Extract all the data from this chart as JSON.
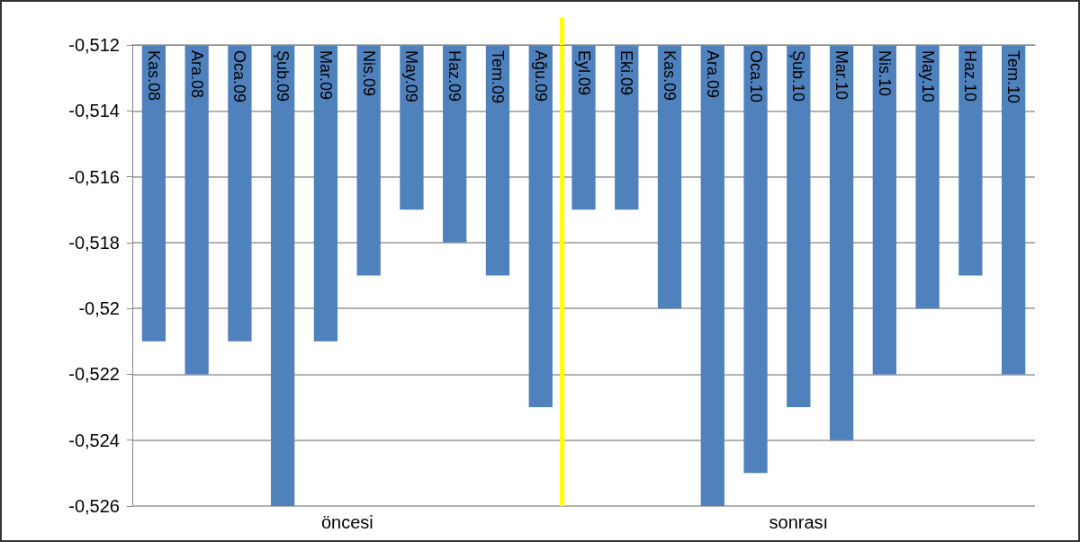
{
  "chart_data": {
    "type": "bar",
    "categories": [
      "Kas.08",
      "Ara.08",
      "Oca.09",
      "Şub.09",
      "Mar.09",
      "Nis.09",
      "May.09",
      "Haz.09",
      "Tem.09",
      "Ağu.09",
      "Eyl.09",
      "Eki.09",
      "Kas.09",
      "Ara.09",
      "Oca.10",
      "Şub.10",
      "Mar.10",
      "Nis.10",
      "May.10",
      "Haz.10",
      "Tem.10"
    ],
    "values": [
      -0.521,
      -0.522,
      -0.521,
      -0.526,
      -0.521,
      -0.519,
      -0.517,
      -0.518,
      -0.519,
      -0.523,
      -0.517,
      -0.517,
      -0.52,
      -0.526,
      -0.525,
      -0.523,
      -0.524,
      -0.522,
      -0.52,
      -0.519,
      -0.522
    ],
    "color": "#4f81bd",
    "ylim": [
      -0.526,
      -0.512
    ],
    "yticks": [
      {
        "value": -0.526,
        "label": "-0,526"
      },
      {
        "value": -0.524,
        "label": "-0,524"
      },
      {
        "value": -0.522,
        "label": "-0,522"
      },
      {
        "value": -0.52,
        "label": "-0,52"
      },
      {
        "value": -0.518,
        "label": "-0,518"
      },
      {
        "value": -0.516,
        "label": "-0,516"
      },
      {
        "value": -0.514,
        "label": "-0,514"
      },
      {
        "value": -0.512,
        "label": "-0,512"
      }
    ],
    "grid": "y",
    "ref_lines": [
      {
        "axis": "x",
        "value": "Eyl.09",
        "color": "#ffff00"
      }
    ],
    "annotations": [
      "öncesi",
      "sonrası"
    ]
  }
}
